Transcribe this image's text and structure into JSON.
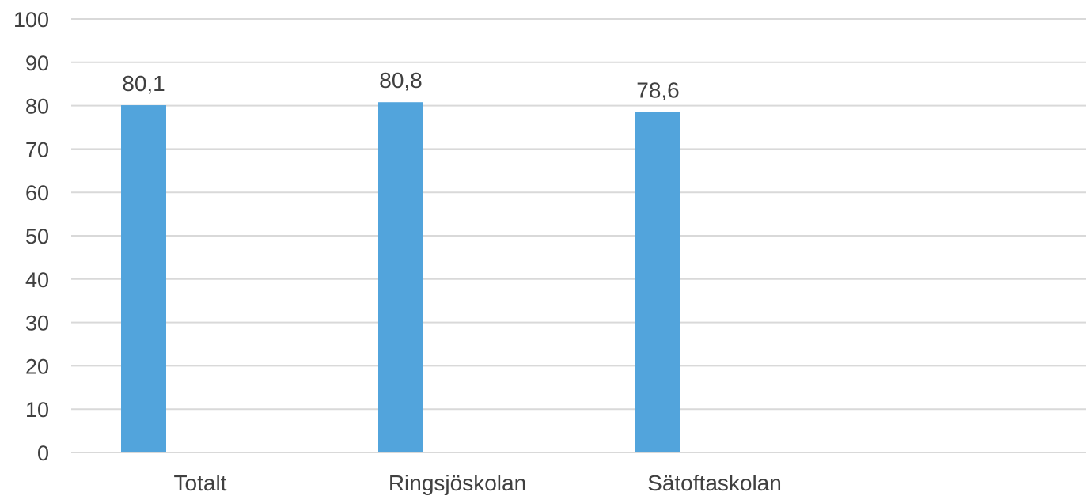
{
  "chart_data": {
    "type": "bar",
    "categories": [
      "Totalt",
      "Ringsjöskolan",
      "Sätoftaskolan"
    ],
    "values": [
      80.1,
      80.8,
      78.6
    ],
    "value_labels": [
      "80,1",
      "80,8",
      "78,6"
    ],
    "ylim": [
      0,
      100
    ],
    "yticks": [
      0,
      10,
      20,
      30,
      40,
      50,
      60,
      70,
      80,
      90,
      100
    ],
    "ytick_labels": [
      "0",
      "10",
      "20",
      "30",
      "40",
      "50",
      "60",
      "70",
      "80",
      "90",
      "100"
    ],
    "grid": true,
    "legend": "none",
    "colors": {
      "bar": "#52a4dc",
      "grid": "#d9d9d9",
      "text": "#404040"
    }
  }
}
